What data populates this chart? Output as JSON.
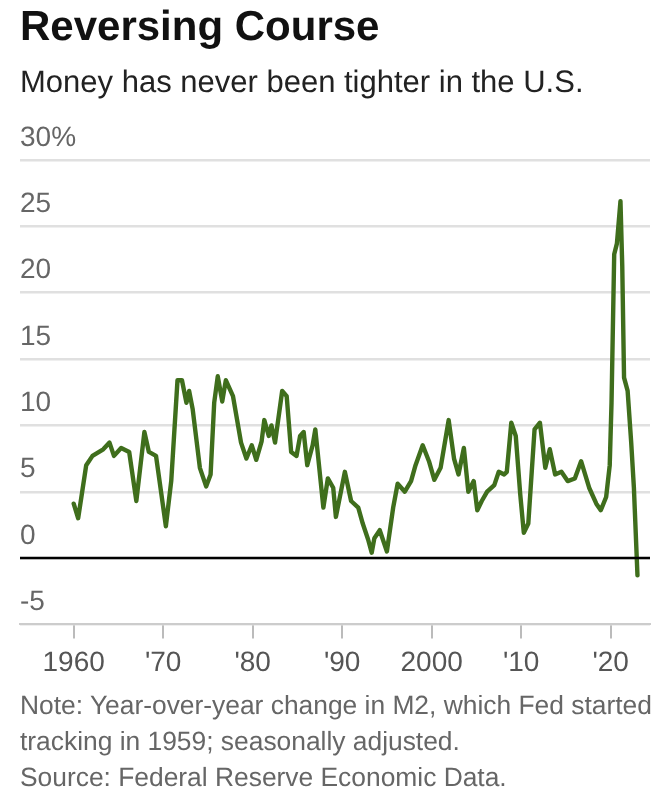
{
  "chart_data": {
    "type": "line",
    "title": "Reversing Course",
    "subtitle": "Money has never been tighter in the U.S.",
    "annotations": [
      "Note: Year-over-year change in M2, which Fed started tracking in 1959; seasonally adjusted.",
      "Source: Federal Reserve Economic Data."
    ],
    "x": [
      1960.0,
      1960.5,
      1961.4,
      1962.1,
      1963.3,
      1964.0,
      1964.5,
      1965.3,
      1966.2,
      1967.0,
      1967.9,
      1968.4,
      1969.2,
      1970.3,
      1970.9,
      1971.6,
      1972.1,
      1972.6,
      1972.9,
      1973.3,
      1974.1,
      1974.8,
      1975.3,
      1975.7,
      1976.1,
      1976.6,
      1977.0,
      1977.8,
      1978.7,
      1979.3,
      1979.9,
      1980.4,
      1981.0,
      1981.3,
      1981.8,
      1982.1,
      1982.5,
      1983.3,
      1983.8,
      1984.3,
      1984.9,
      1985.3,
      1985.7,
      1986.1,
      1986.7,
      1987.0,
      1987.9,
      1988.4,
      1989.0,
      1989.3,
      1990.3,
      1991.0,
      1991.8,
      1992.3,
      1992.9,
      1993.3,
      1993.6,
      1994.2,
      1995.0,
      1995.7,
      1996.2,
      1997.0,
      1997.7,
      1998.2,
      1999.0,
      1999.7,
      2000.3,
      2001.0,
      2001.9,
      2002.5,
      2003.0,
      2003.6,
      2004.1,
      2004.7,
      2005.1,
      2005.6,
      2006.2,
      2007.0,
      2007.5,
      2008.1,
      2008.4,
      2008.9,
      2009.4,
      2009.9,
      2010.3,
      2010.8,
      2011.5,
      2012.1,
      2012.7,
      2013.2,
      2013.8,
      2014.5,
      2015.2,
      2016.0,
      2016.7,
      2017.6,
      2018.4,
      2018.9,
      2019.5,
      2019.9,
      2020.1,
      2020.4,
      2020.7,
      2021.1,
      2021.3,
      2021.5,
      2021.9,
      2022.3,
      2022.6,
      2023.0
    ],
    "series": [
      {
        "color": "#3f6e1c",
        "values": [
          4.1,
          3.0,
          7.0,
          7.7,
          8.2,
          8.7,
          7.7,
          8.3,
          8.0,
          4.3,
          9.5,
          8.0,
          7.7,
          2.4,
          5.8,
          13.4,
          13.4,
          11.7,
          12.6,
          11.2,
          6.8,
          5.4,
          6.3,
          11.7,
          13.7,
          11.8,
          13.4,
          12.2,
          8.7,
          7.5,
          8.5,
          7.4,
          8.8,
          10.4,
          9.2,
          10.0,
          8.7,
          12.6,
          12.2,
          8.0,
          7.7,
          9.2,
          9.5,
          7.0,
          8.5,
          9.7,
          3.8,
          6.0,
          5.3,
          3.1,
          6.5,
          4.3,
          3.8,
          2.6,
          1.4,
          0.4,
          1.5,
          2.1,
          0.5,
          3.8,
          5.6,
          5.0,
          5.8,
          7.0,
          8.5,
          7.3,
          5.9,
          6.8,
          10.4,
          7.5,
          6.3,
          8.3,
          5.0,
          5.8,
          3.6,
          4.3,
          5.0,
          5.5,
          6.5,
          6.3,
          6.5,
          10.2,
          9.2,
          4.8,
          1.9,
          2.6,
          9.7,
          10.2,
          6.8,
          8.2,
          6.3,
          6.5,
          5.8,
          6.0,
          7.3,
          5.3,
          4.1,
          3.6,
          4.6,
          7.0,
          11.7,
          22.9,
          23.7,
          26.9,
          22.0,
          13.6,
          12.6,
          8.7,
          5.3,
          -1.3
        ]
      }
    ],
    "xlim": [
      1954,
      2024.4
    ],
    "xticks": [
      1960,
      {
        "value": 1970,
        "label": "'70"
      },
      {
        "value": 1980,
        "label": "'80"
      },
      {
        "value": 1990,
        "label": "'90"
      },
      2000,
      {
        "value": 2010,
        "label": "'10"
      },
      {
        "value": 2020,
        "label": "'20"
      }
    ],
    "ylim": [
      -5,
      30
    ],
    "yticks": [
      -5,
      0,
      5,
      10,
      15,
      20,
      25,
      {
        "value": 30,
        "label": "30%"
      }
    ],
    "grid": "y",
    "marker": "none",
    "ref_lines": [
      {
        "axis": "y",
        "value": 0,
        "color": "#000000"
      }
    ]
  }
}
